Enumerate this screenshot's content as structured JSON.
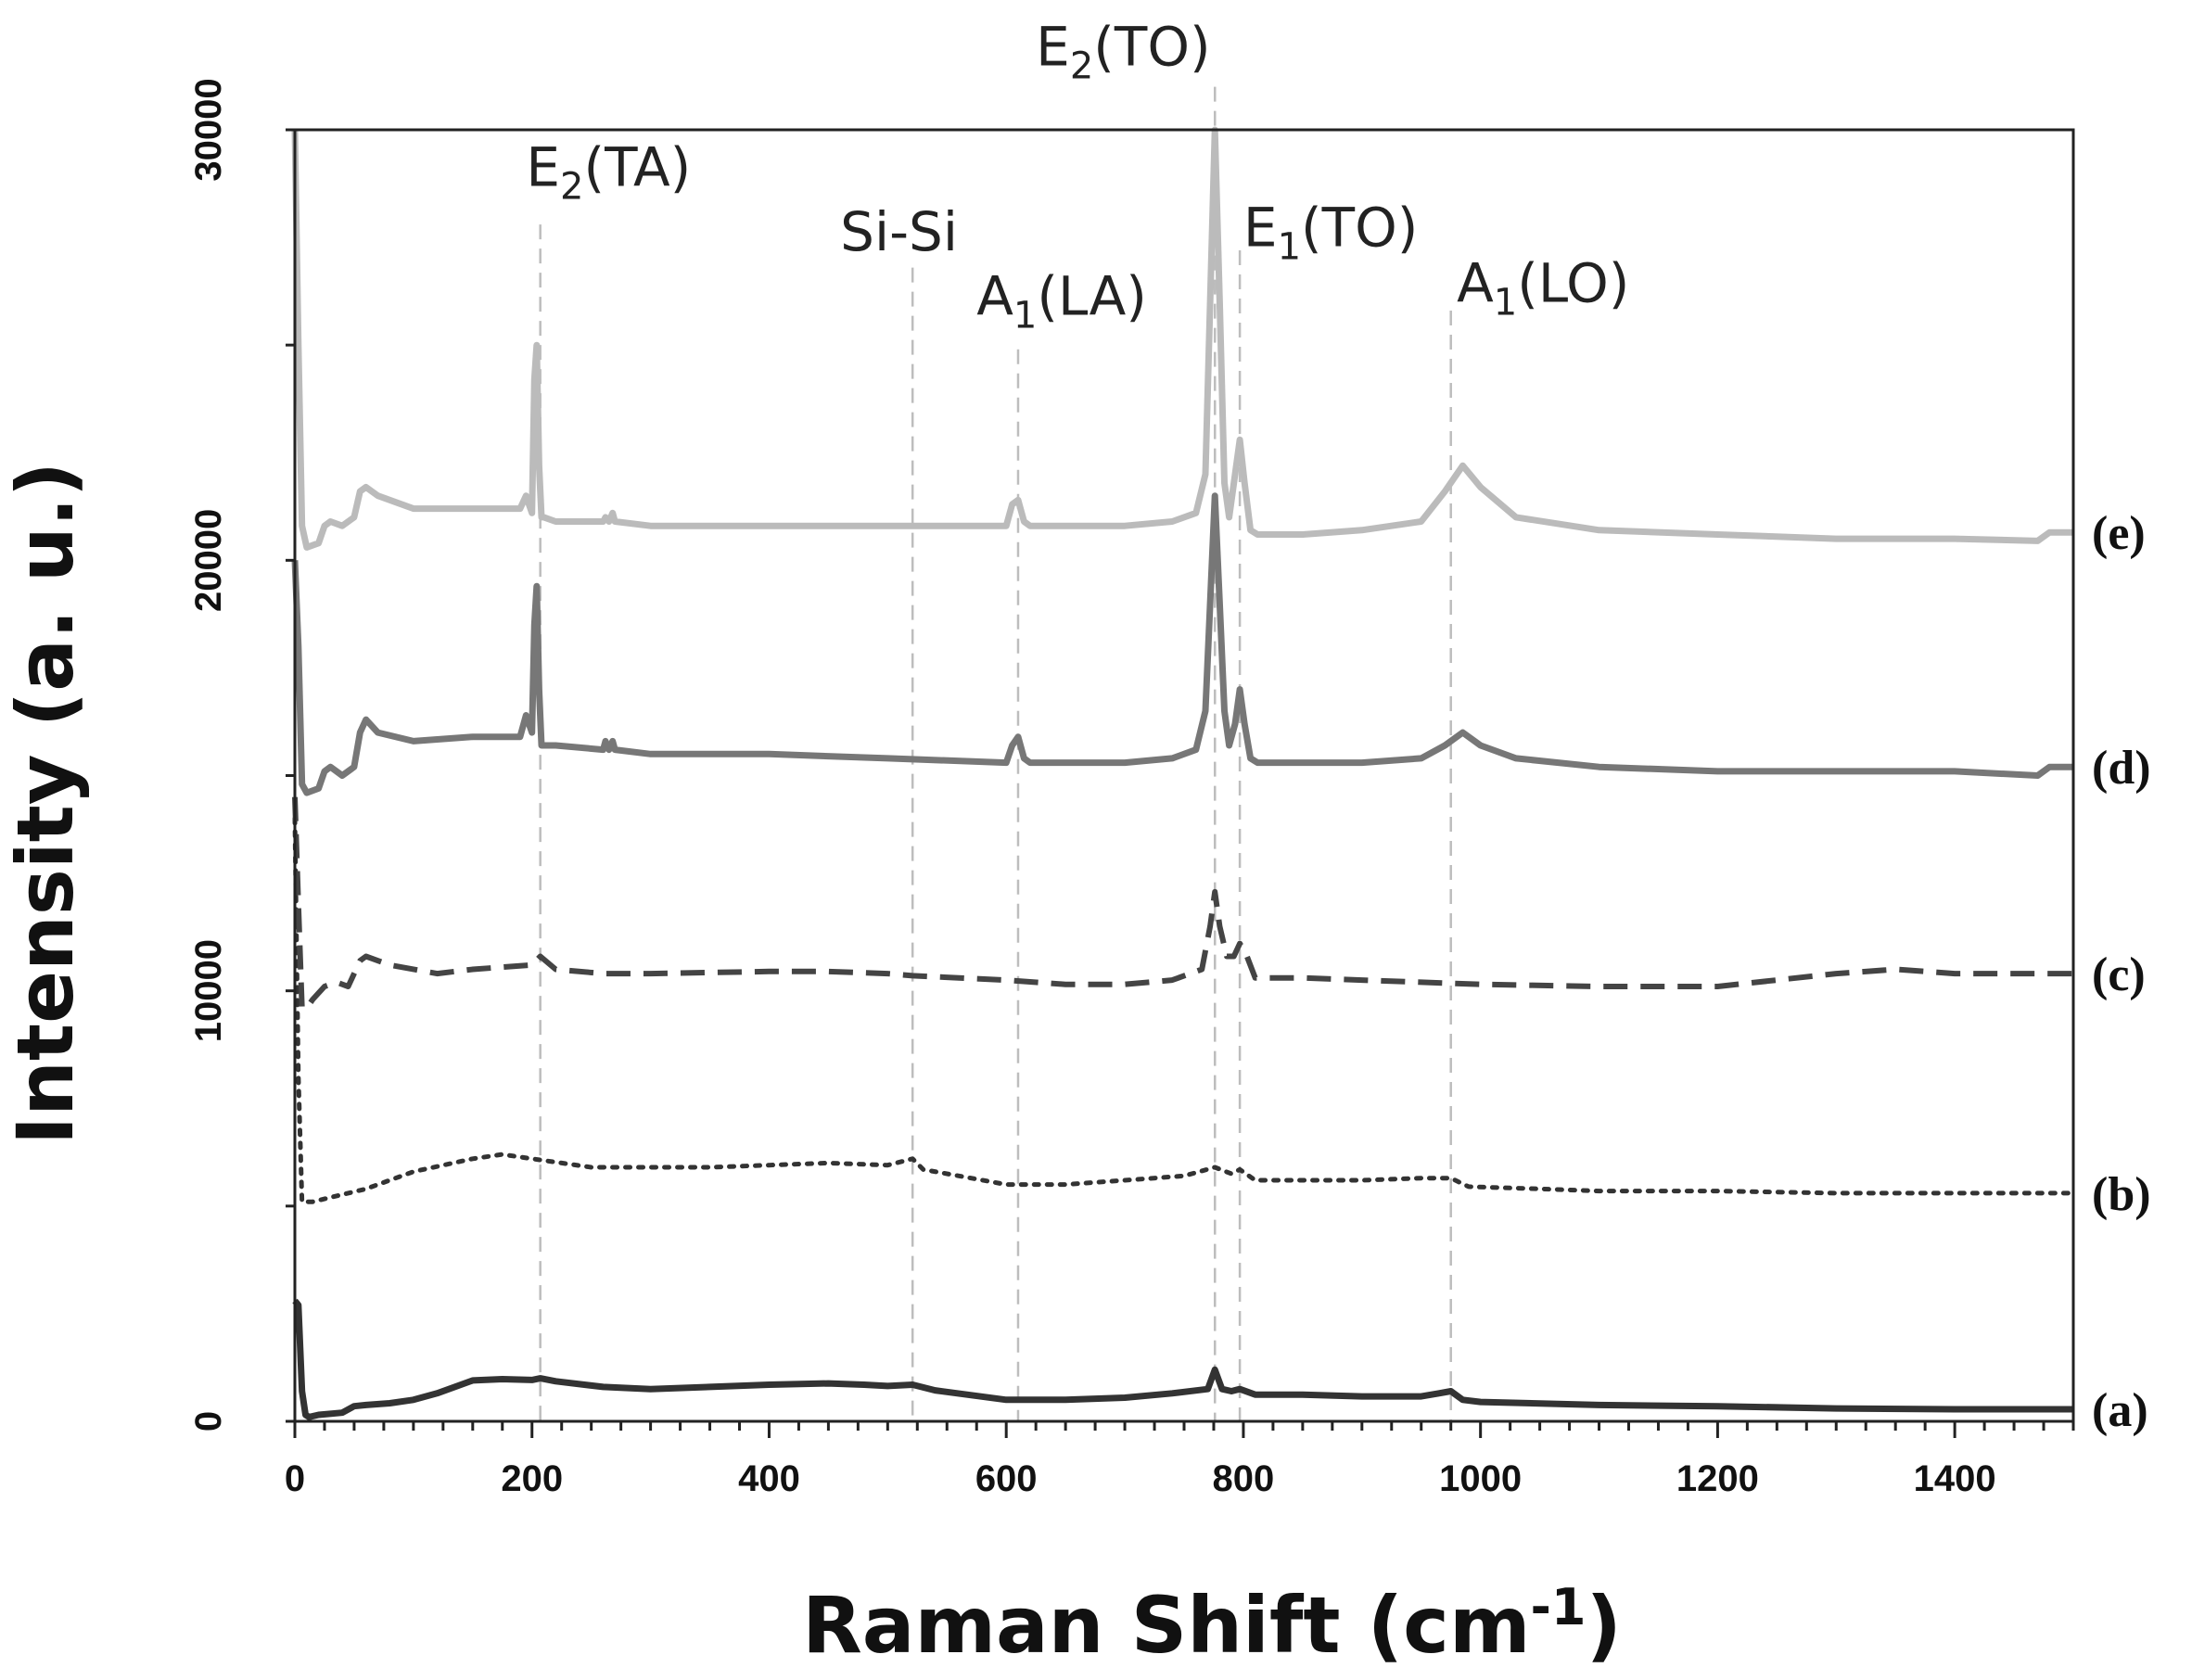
{
  "chart_data": {
    "type": "line",
    "title": "",
    "xlabel": {
      "main": "Raman Shift (cm",
      "sup": "-1",
      "close": ")"
    },
    "ylabel": "Intensity (a. u.)",
    "xlim": [
      0,
      1500
    ],
    "ylim": [
      0,
      30000
    ],
    "x_ticks": [
      {
        "value": 0,
        "label": "0"
      },
      {
        "value": 200,
        "label": "200"
      },
      {
        "value": 400,
        "label": "400"
      },
      {
        "value": 600,
        "label": "600"
      },
      {
        "value": 800,
        "label": "800"
      },
      {
        "value": 1000,
        "label": "1000"
      },
      {
        "value": 1200,
        "label": "1200"
      },
      {
        "value": 1400,
        "label": "1400"
      }
    ],
    "y_ticks": [
      {
        "value": 0,
        "label": "0"
      },
      {
        "value": 10000,
        "label": "10000"
      },
      {
        "value": 20000,
        "label": "20000"
      },
      {
        "value": 30000,
        "label": "30000"
      }
    ],
    "peak_lines": [
      {
        "name": "E2(TA)",
        "x": 207,
        "top": 27800,
        "base": "E",
        "sub": "2",
        "rest": "(TA)",
        "label_x": 195,
        "label_y": 28700
      },
      {
        "name": "Si-Si",
        "x": 521,
        "top": 26800,
        "base": "Si-Si",
        "sub": "",
        "rest": "",
        "label_x": 460,
        "label_y": 27200
      },
      {
        "name": "A1(LA)",
        "x": 610,
        "top": 24900,
        "base": "A",
        "sub": "1",
        "rest": "(LA)",
        "label_x": 575,
        "label_y": 25700
      },
      {
        "name": "E2(TO)",
        "x": 776,
        "top": 31000,
        "base": "E",
        "sub": "2",
        "rest": "(TO)",
        "label_x": 625,
        "label_y": 31500
      },
      {
        "name": "E1(TO)",
        "x": 797,
        "top": 27200,
        "base": "E",
        "sub": "1",
        "rest": "(TO)",
        "label_x": 800,
        "label_y": 27300
      },
      {
        "name": "A1(LO)",
        "x": 975,
        "top": 25800,
        "base": "A",
        "sub": "1",
        "rest": "(LO)",
        "label_x": 980,
        "label_y": 26000
      }
    ],
    "series": [
      {
        "name": "(a)",
        "style": "solid",
        "color": "#333333",
        "x": [
          0,
          3,
          6,
          9,
          12,
          20,
          40,
          50,
          60,
          80,
          100,
          120,
          150,
          175,
          200,
          207,
          220,
          260,
          300,
          350,
          400,
          450,
          480,
          500,
          521,
          540,
          600,
          650,
          700,
          740,
          770,
          776,
          782,
          790,
          797,
          810,
          850,
          900,
          950,
          965,
          975,
          985,
          1000,
          1100,
          1200,
          1300,
          1400,
          1500
        ],
        "values": [
          2800,
          2700,
          700,
          150,
          100,
          150,
          200,
          350,
          380,
          420,
          500,
          650,
          950,
          980,
          960,
          1000,
          930,
          800,
          750,
          800,
          850,
          880,
          850,
          820,
          850,
          720,
          500,
          500,
          550,
          650,
          750,
          1200,
          750,
          700,
          750,
          620,
          620,
          580,
          580,
          650,
          700,
          500,
          450,
          380,
          350,
          300,
          280,
          280
        ]
      },
      {
        "name": "(b)",
        "style": "dotted",
        "color": "#333333",
        "x": [
          0,
          3,
          6,
          9,
          15,
          30,
          60,
          100,
          150,
          175,
          200,
          250,
          300,
          350,
          400,
          450,
          500,
          521,
          530,
          560,
          600,
          650,
          700,
          750,
          776,
          790,
          797,
          810,
          850,
          900,
          950,
          975,
          990,
          1050,
          1100,
          1200,
          1300,
          1400,
          1500
        ],
        "values": [
          14000,
          8000,
          5100,
          5100,
          5100,
          5200,
          5400,
          5800,
          6100,
          6200,
          6100,
          5900,
          5900,
          5900,
          5950,
          6000,
          5950,
          6100,
          5850,
          5700,
          5500,
          5500,
          5600,
          5700,
          5900,
          5750,
          5850,
          5600,
          5600,
          5600,
          5650,
          5650,
          5450,
          5400,
          5350,
          5350,
          5300,
          5300,
          5300
        ]
      },
      {
        "name": "(c)",
        "style": "dashed",
        "color": "#444444",
        "x": [
          0,
          3,
          6,
          10,
          15,
          25,
          35,
          45,
          55,
          60,
          80,
          120,
          150,
          200,
          207,
          220,
          260,
          300,
          400,
          450,
          500,
          521,
          560,
          600,
          650,
          700,
          740,
          765,
          772,
          776,
          780,
          786,
          792,
          797,
          803,
          810,
          850,
          900,
          950,
          1000,
          1100,
          1200,
          1300,
          1350,
          1400,
          1500
        ],
        "values": [
          14500,
          12000,
          9600,
          9600,
          9800,
          10100,
          10200,
          10100,
          10700,
          10800,
          10600,
          10400,
          10500,
          10600,
          10800,
          10500,
          10400,
          10400,
          10450,
          10450,
          10400,
          10350,
          10300,
          10250,
          10150,
          10150,
          10250,
          10500,
          11500,
          12300,
          11500,
          10800,
          10800,
          11100,
          10800,
          10300,
          10300,
          10250,
          10200,
          10150,
          10100,
          10100,
          10400,
          10500,
          10400,
          10400
        ]
      },
      {
        "name": "(d)",
        "style": "solid",
        "color": "#777777",
        "x": [
          0,
          3,
          6,
          10,
          20,
          25,
          30,
          40,
          50,
          55,
          60,
          70,
          100,
          150,
          190,
          195,
          200,
          202,
          204,
          206,
          208,
          210,
          220,
          260,
          262,
          265,
          268,
          270,
          300,
          400,
          500,
          600,
          605,
          610,
          615,
          620,
          700,
          740,
          760,
          768,
          772,
          776,
          780,
          784,
          788,
          793,
          797,
          801,
          806,
          812,
          850,
          900,
          950,
          970,
          985,
          1000,
          1030,
          1100,
          1200,
          1300,
          1400,
          1470,
          1480,
          1500
        ],
        "values": [
          20000,
          18000,
          14800,
          14600,
          14700,
          15100,
          15200,
          15000,
          15200,
          16000,
          16300,
          16000,
          15800,
          15900,
          15900,
          16400,
          16000,
          18500,
          19400,
          17000,
          15700,
          15700,
          15700,
          15600,
          15800,
          15600,
          15800,
          15600,
          15500,
          15500,
          15400,
          15300,
          15700,
          15900,
          15400,
          15300,
          15300,
          15400,
          15600,
          16500,
          19000,
          21500,
          19000,
          16500,
          15700,
          16200,
          17000,
          16200,
          15400,
          15300,
          15300,
          15300,
          15400,
          15700,
          16000,
          15700,
          15400,
          15200,
          15100,
          15100,
          15100,
          15000,
          15200,
          15200
        ]
      },
      {
        "name": "(e)",
        "style": "solid",
        "color": "#bbbbbb",
        "x": [
          0,
          3,
          6,
          10,
          20,
          25,
          30,
          40,
          50,
          55,
          60,
          70,
          100,
          150,
          190,
          195,
          200,
          202,
          204,
          206,
          208,
          210,
          220,
          260,
          262,
          265,
          268,
          270,
          300,
          400,
          500,
          600,
          605,
          610,
          615,
          620,
          700,
          740,
          760,
          768,
          772,
          776,
          780,
          784,
          788,
          793,
          797,
          801,
          806,
          812,
          850,
          900,
          950,
          970,
          985,
          1000,
          1030,
          1100,
          1200,
          1300,
          1400,
          1470,
          1480,
          1500
        ],
        "values": [
          30000,
          25000,
          20800,
          20300,
          20400,
          20800,
          20900,
          20800,
          21000,
          21600,
          21700,
          21500,
          21200,
          21200,
          21200,
          21500,
          21100,
          24200,
          25000,
          22200,
          21000,
          21000,
          20900,
          20900,
          21000,
          20900,
          21100,
          20900,
          20800,
          20800,
          20800,
          20800,
          21300,
          21400,
          20900,
          20800,
          20800,
          20900,
          21100,
          22000,
          26000,
          30000,
          26000,
          21800,
          21000,
          22000,
          22800,
          21800,
          20700,
          20600,
          20600,
          20700,
          20900,
          21600,
          22200,
          21700,
          21000,
          20700,
          20600,
          20500,
          20500,
          20450,
          20650,
          20650
        ]
      }
    ]
  }
}
